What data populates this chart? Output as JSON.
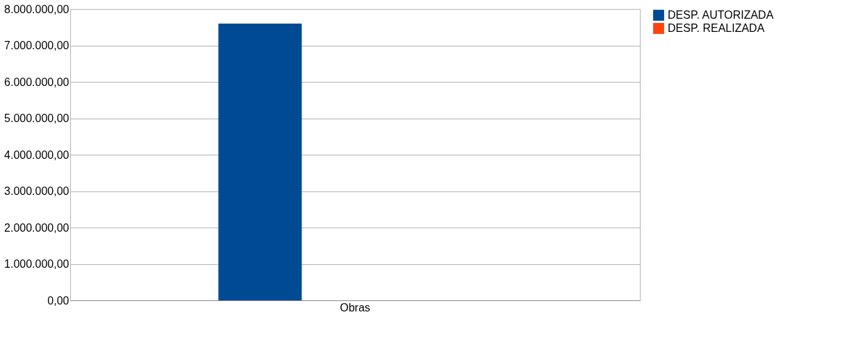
{
  "chart_data": {
    "type": "bar",
    "categories": [
      "Obras"
    ],
    "series": [
      {
        "name": "DESP. AUTORIZADA",
        "color": "#004a93",
        "values": [
          7600000
        ]
      },
      {
        "name": "DESP.        REALIZADA",
        "color": "#ff420e",
        "values": [
          0
        ]
      }
    ],
    "ylim": [
      0,
      8000000
    ],
    "yticks": [
      {
        "value": 0,
        "label": "0,00"
      },
      {
        "value": 1000000,
        "label": "1.000.000,00"
      },
      {
        "value": 2000000,
        "label": "2.000.000,00"
      },
      {
        "value": 3000000,
        "label": "3.000.000,00"
      },
      {
        "value": 4000000,
        "label": "4.000.000,00"
      },
      {
        "value": 5000000,
        "label": "5.000.000,00"
      },
      {
        "value": 6000000,
        "label": "6.000.000,00"
      },
      {
        "value": 7000000,
        "label": "7.000.000,00"
      },
      {
        "value": 8000000,
        "label": "8.000.000,00"
      }
    ],
    "grid": "y",
    "legend": "right"
  }
}
